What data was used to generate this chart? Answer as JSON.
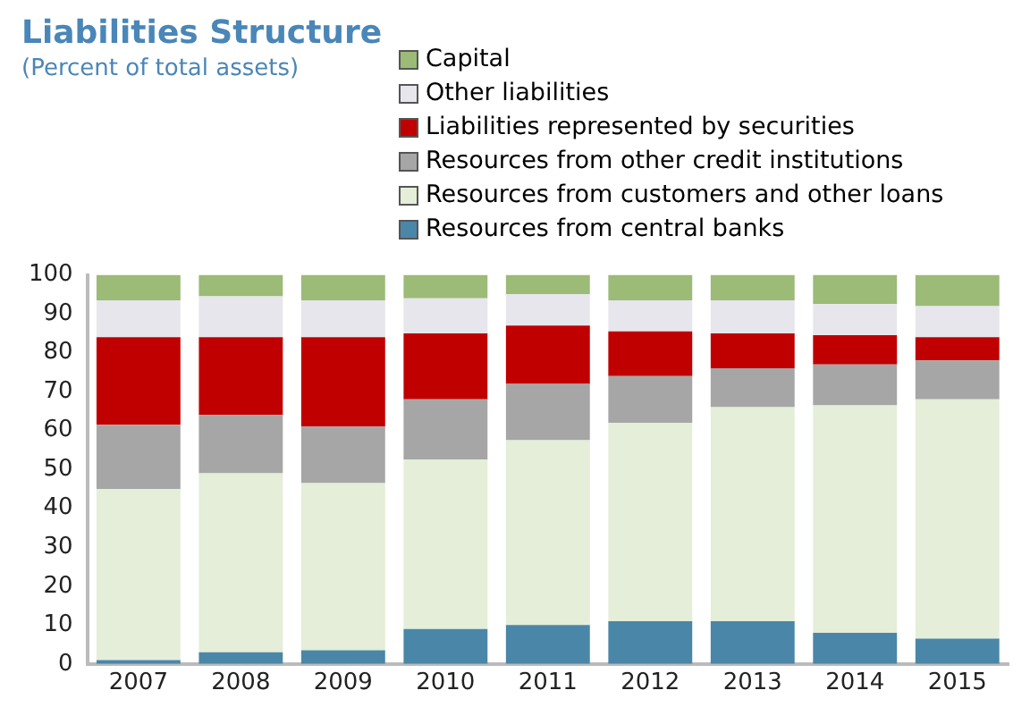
{
  "chart_data": {
    "type": "bar",
    "title": "Liabilities Structure",
    "subtitle": "(Percent of total assets)",
    "categories": [
      "2007",
      "2008",
      "2009",
      "2010",
      "2011",
      "2012",
      "2013",
      "2014",
      "2015"
    ],
    "stacked": true,
    "legend": "top right",
    "grid": false,
    "ylim": [
      0,
      100
    ],
    "yticks": [
      0,
      10,
      20,
      30,
      40,
      50,
      60,
      70,
      80,
      90,
      100
    ],
    "series": [
      {
        "name": "Resources from central banks",
        "color": "#4a86a8",
        "values": [
          1,
          3,
          3.5,
          9,
          10,
          11,
          11,
          8,
          6.5
        ]
      },
      {
        "name": "Resources from customers and other loans",
        "color": "#e4eed8",
        "values": [
          44,
          46,
          43,
          43.5,
          47.5,
          51,
          55,
          58.5,
          61.5
        ]
      },
      {
        "name": "Resources from other credit institutions",
        "color": "#a6a6a6",
        "values": [
          16.5,
          15,
          14.5,
          15.5,
          14.5,
          12,
          10,
          10.5,
          10
        ]
      },
      {
        "name": "Liabilities represented by securities",
        "color": "#c00000",
        "values": [
          22.5,
          20,
          23,
          17,
          15,
          11.5,
          9,
          7.5,
          6
        ]
      },
      {
        "name": "Other liabilities",
        "color": "#e6e6ec",
        "values": [
          9.5,
          10.5,
          9.5,
          9,
          8,
          8,
          8.5,
          8,
          8
        ]
      },
      {
        "name": "Capital",
        "color": "#9bbb77",
        "values": [
          6.5,
          5.5,
          6.5,
          6,
          5,
          6.5,
          6.5,
          7.5,
          8
        ]
      }
    ]
  }
}
